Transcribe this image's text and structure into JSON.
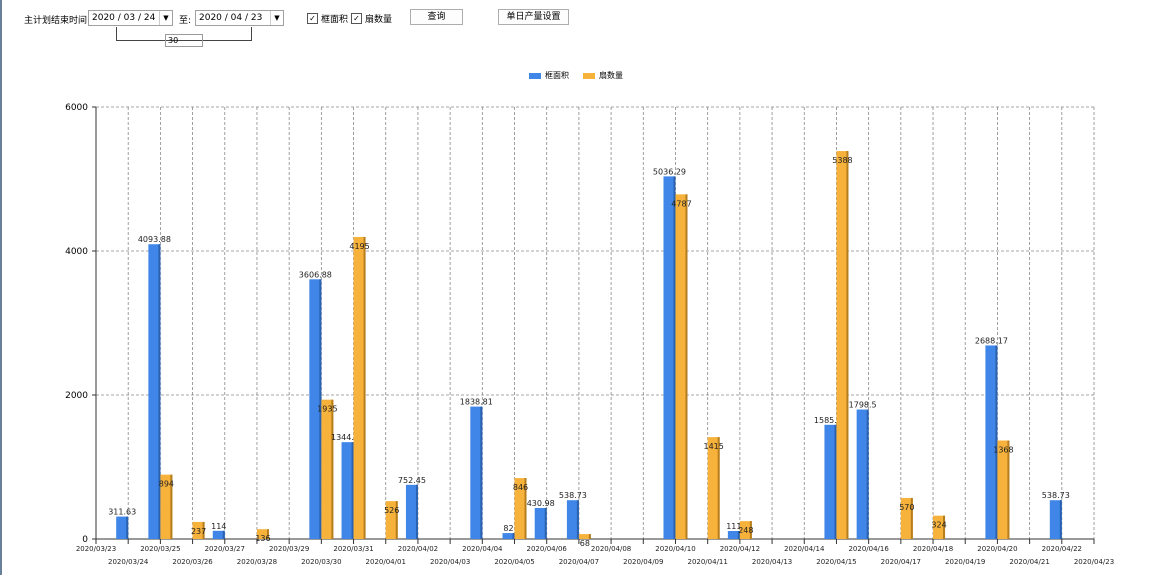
{
  "filter": {
    "label": "主计划结束时间:",
    "start_date": "2020 / 03 / 24",
    "to_label": "至:",
    "end_date": "2020 / 04 / 23",
    "days": "30",
    "checkbox_area": {
      "label": "框面积",
      "checked": true
    },
    "checkbox_count": {
      "label": "扇数量",
      "checked": true
    },
    "query_button": "查询",
    "daily_output_button": "单日产量设置"
  },
  "chart_data": {
    "type": "bar",
    "legend_position": "top-center",
    "grid": true,
    "ylim": [
      0,
      6000
    ],
    "yticks": [
      "0",
      "2000",
      "4000",
      "6000"
    ],
    "x_tick_labels": [
      "2020/03/23",
      "2020/03/24",
      "2020/03/25",
      "2020/03/26",
      "2020/03/27",
      "2020/03/28",
      "2020/03/29",
      "2020/03/30",
      "2020/03/31",
      "2020/04/01",
      "2020/04/02",
      "2020/04/03",
      "2020/04/04",
      "2020/04/05",
      "2020/04/06",
      "2020/04/07",
      "2020/04/08",
      "2020/04/09",
      "2020/04/10",
      "2020/04/11",
      "2020/04/12",
      "2020/04/13",
      "2020/04/14",
      "2020/04/15",
      "2020/04/16",
      "2020/04/17",
      "2020/04/18",
      "2020/04/19",
      "2020/04/20",
      "2020/04/21",
      "2020/04/22",
      "2020/04/23"
    ],
    "categories": [
      "2020/03/24",
      "2020/03/25",
      "2020/03/26",
      "2020/03/27",
      "2020/03/28",
      "2020/03/30",
      "2020/03/31",
      "2020/04/01",
      "2020/04/02",
      "2020/04/04",
      "2020/04/05",
      "2020/04/06",
      "2020/04/07",
      "2020/04/10",
      "2020/04/11",
      "2020/04/12",
      "2020/04/15",
      "2020/04/16",
      "2020/04/17",
      "2020/04/18",
      "2020/04/20",
      "2020/04/22"
    ],
    "series": [
      {
        "name": "框面积",
        "color": "#3f86e8",
        "values": [
          311.63,
          4093.88,
          0,
          114,
          0,
          3606.88,
          1344.95,
          0,
          752.45,
          1838.81,
          82,
          430.98,
          538.73,
          5036.29,
          0,
          111,
          1585.96,
          1798.5,
          0,
          0,
          2688.17,
          538.73
        ]
      },
      {
        "name": "扇数量",
        "color": "#f7b23b",
        "values": [
          0,
          894,
          237,
          0,
          136,
          1935,
          4195,
          526,
          0,
          0,
          846,
          0,
          68,
          4787,
          1415,
          248,
          5388,
          0,
          570,
          324,
          1368,
          0
        ]
      }
    ]
  }
}
